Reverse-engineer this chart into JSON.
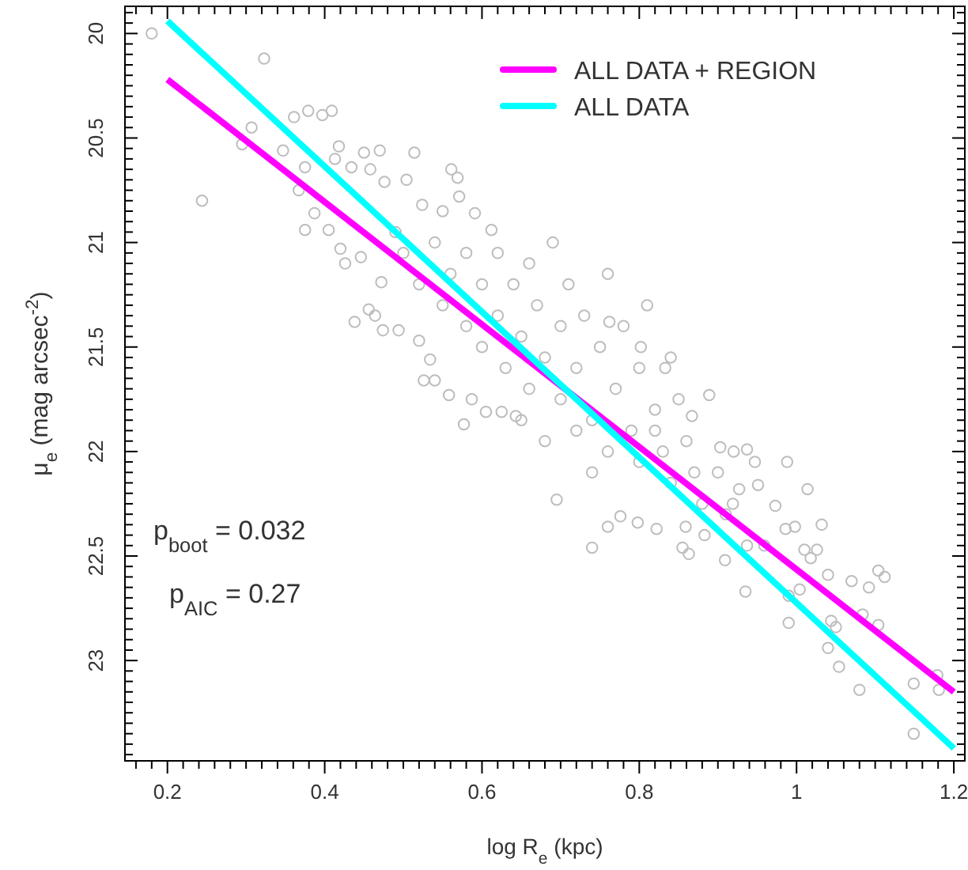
{
  "chart_data": {
    "type": "scatter",
    "xlabel": "log R$_{e}$ (kpc)",
    "ylabel": "μ$_{e}$ (mag arcsec$^{-2}$)",
    "xlim": [
      0.146,
      1.214
    ],
    "ylim": [
      23.48,
      19.87
    ],
    "xticks": [
      {
        "value": 0.16,
        "label": null
      },
      {
        "value": 0.18,
        "label": null
      },
      0.2,
      {
        "value": 0.22,
        "label": null
      },
      {
        "value": 0.24,
        "label": null
      },
      {
        "value": 0.26,
        "label": null
      },
      {
        "value": 0.28,
        "label": null
      },
      {
        "value": 0.3,
        "label": null
      },
      {
        "value": 0.32,
        "label": null
      },
      {
        "value": 0.34,
        "label": null
      },
      {
        "value": 0.36,
        "label": null
      },
      {
        "value": 0.38,
        "label": null
      },
      0.4,
      {
        "value": 0.42,
        "label": null
      },
      {
        "value": 0.44,
        "label": null
      },
      {
        "value": 0.46,
        "label": null
      },
      {
        "value": 0.48,
        "label": null
      },
      {
        "value": 0.5,
        "label": null
      },
      {
        "value": 0.52,
        "label": null
      },
      {
        "value": 0.54,
        "label": null
      },
      {
        "value": 0.56,
        "label": null
      },
      {
        "value": 0.58,
        "label": null
      },
      0.6,
      {
        "value": 0.62,
        "label": null
      },
      {
        "value": 0.64,
        "label": null
      },
      {
        "value": 0.66,
        "label": null
      },
      {
        "value": 0.68,
        "label": null
      },
      {
        "value": 0.7,
        "label": null
      },
      {
        "value": 0.72,
        "label": null
      },
      {
        "value": 0.74,
        "label": null
      },
      {
        "value": 0.76,
        "label": null
      },
      {
        "value": 0.78,
        "label": null
      },
      0.8,
      {
        "value": 0.82,
        "label": null
      },
      {
        "value": 0.84,
        "label": null
      },
      {
        "value": 0.86,
        "label": null
      },
      {
        "value": 0.88,
        "label": null
      },
      {
        "value": 0.9,
        "label": null
      },
      {
        "value": 0.92,
        "label": null
      },
      {
        "value": 0.94,
        "label": null
      },
      {
        "value": 0.96,
        "label": null
      },
      {
        "value": 0.98,
        "label": null
      },
      1,
      {
        "value": 1.02,
        "label": null
      },
      {
        "value": 1.04,
        "label": null
      },
      {
        "value": 1.06,
        "label": null
      },
      {
        "value": 1.08,
        "label": null
      },
      {
        "value": 1.1,
        "label": null
      },
      {
        "value": 1.12,
        "label": null
      },
      {
        "value": 1.14,
        "label": null
      },
      {
        "value": 1.16,
        "label": null
      },
      {
        "value": 1.18,
        "label": null
      },
      1.2
    ],
    "yticks": [
      {
        "value": 19.9,
        "label": null
      },
      {
        "value": 19.95,
        "label": null
      },
      20,
      {
        "value": 20.05,
        "label": null
      },
      {
        "value": 20.1,
        "label": null
      },
      {
        "value": 20.15,
        "label": null
      },
      {
        "value": 20.2,
        "label": null
      },
      {
        "value": 20.25,
        "label": null
      },
      {
        "value": 20.3,
        "label": null
      },
      {
        "value": 20.35,
        "label": null
      },
      {
        "value": 20.4,
        "label": null
      },
      {
        "value": 20.45,
        "label": null
      },
      20.5,
      {
        "value": 20.55,
        "label": null
      },
      {
        "value": 20.6,
        "label": null
      },
      {
        "value": 20.65,
        "label": null
      },
      {
        "value": 20.7,
        "label": null
      },
      {
        "value": 20.75,
        "label": null
      },
      {
        "value": 20.8,
        "label": null
      },
      {
        "value": 20.85,
        "label": null
      },
      {
        "value": 20.9,
        "label": null
      },
      {
        "value": 20.95,
        "label": null
      },
      21,
      {
        "value": 21.05,
        "label": null
      },
      {
        "value": 21.1,
        "label": null
      },
      {
        "value": 21.15,
        "label": null
      },
      {
        "value": 21.2,
        "label": null
      },
      {
        "value": 21.25,
        "label": null
      },
      {
        "value": 21.3,
        "label": null
      },
      {
        "value": 21.35,
        "label": null
      },
      {
        "value": 21.4,
        "label": null
      },
      {
        "value": 21.45,
        "label": null
      },
      21.5,
      {
        "value": 21.55,
        "label": null
      },
      {
        "value": 21.6,
        "label": null
      },
      {
        "value": 21.65,
        "label": null
      },
      {
        "value": 21.7,
        "label": null
      },
      {
        "value": 21.75,
        "label": null
      },
      {
        "value": 21.8,
        "label": null
      },
      {
        "value": 21.85,
        "label": null
      },
      {
        "value": 21.9,
        "label": null
      },
      {
        "value": 21.95,
        "label": null
      },
      22,
      {
        "value": 22.05,
        "label": null
      },
      {
        "value": 22.1,
        "label": null
      },
      {
        "value": 22.15,
        "label": null
      },
      {
        "value": 22.2,
        "label": null
      },
      {
        "value": 22.25,
        "label": null
      },
      {
        "value": 22.3,
        "label": null
      },
      {
        "value": 22.35,
        "label": null
      },
      {
        "value": 22.4,
        "label": null
      },
      {
        "value": 22.45,
        "label": null
      },
      22.5,
      {
        "value": 22.55,
        "label": null
      },
      {
        "value": 22.6,
        "label": null
      },
      {
        "value": 22.65,
        "label": null
      },
      {
        "value": 22.7,
        "label": null
      },
      {
        "value": 22.75,
        "label": null
      },
      {
        "value": 22.8,
        "label": null
      },
      {
        "value": 22.85,
        "label": null
      },
      {
        "value": 22.9,
        "label": null
      },
      {
        "value": 22.95,
        "label": null
      },
      23,
      {
        "value": 23.05,
        "label": null
      },
      {
        "value": 23.1,
        "label": null
      },
      {
        "value": 23.15,
        "label": null
      },
      {
        "value": 23.2,
        "label": null
      },
      {
        "value": 23.25,
        "label": null
      },
      {
        "value": 23.3,
        "label": null
      },
      {
        "value": 23.35,
        "label": null
      },
      {
        "value": 23.4,
        "label": null
      },
      {
        "value": 23.45,
        "label": null
      }
    ],
    "grid": false,
    "legend": "top right",
    "annotations": [
      "p$_{boot}$ = 0.032",
      "p$_{AIC}$ = 0.27"
    ],
    "series": [
      {
        "marker": "circle",
        "color": "#bdbdbd",
        "x": [
          0.18,
          0.323,
          0.244,
          0.307,
          0.295,
          0.361,
          0.379,
          0.397,
          0.409,
          0.347,
          0.375,
          0.367,
          0.387,
          0.375,
          0.418,
          0.413,
          0.434,
          0.45,
          0.47,
          0.514,
          0.458,
          0.476,
          0.504,
          0.561,
          0.569,
          0.571,
          0.42,
          0.426,
          0.405,
          0.438,
          0.456,
          0.474,
          0.494,
          0.52,
          0.464,
          0.472,
          0.446,
          0.49,
          0.524,
          0.55,
          0.591,
          0.612,
          0.534,
          0.526,
          0.54,
          0.558,
          0.577,
          0.587,
          0.605,
          0.625,
          0.643,
          0.5,
          0.52,
          0.54,
          0.55,
          0.56,
          0.58,
          0.58,
          0.6,
          0.6,
          0.62,
          0.62,
          0.63,
          0.64,
          0.65,
          0.66,
          0.66,
          0.67,
          0.68,
          0.69,
          0.7,
          0.7,
          0.71,
          0.72,
          0.73,
          0.74,
          0.75,
          0.76,
          0.77,
          0.78,
          0.79,
          0.8,
          0.81,
          0.82,
          0.83,
          0.84,
          0.85,
          0.889,
          0.867,
          0.903,
          0.937,
          0.947,
          0.988,
          1.014,
          0.951,
          0.973,
          0.927,
          0.919,
          1.032,
          0.998,
          0.986,
          1.01,
          1.026,
          1.018,
          0.959,
          0.937,
          0.909,
          0.883,
          0.859,
          0.855,
          0.863,
          0.822,
          0.798,
          0.776,
          0.76,
          0.74,
          0.695,
          1.04,
          1.07,
          1.104,
          1.112,
          1.092,
          1.004,
          0.99,
          0.935,
          1.084,
          1.104,
          1.044,
          1.05,
          0.99,
          1.04,
          1.054,
          1.08,
          1.149,
          1.179,
          1.181,
          1.149,
          0.8,
          0.82,
          0.84,
          0.86,
          0.87,
          0.88,
          0.9,
          0.91,
          0.92,
          0.74,
          0.76,
          0.72,
          0.68,
          0.65,
          0.833,
          0.802,
          0.762
        ],
        "values": [
          20.0,
          20.12,
          20.8,
          20.45,
          20.53,
          20.4,
          20.37,
          20.39,
          20.37,
          20.56,
          20.64,
          20.75,
          20.86,
          20.94,
          20.54,
          20.6,
          20.64,
          20.57,
          20.56,
          20.57,
          20.65,
          20.71,
          20.7,
          20.65,
          20.69,
          20.78,
          21.03,
          21.1,
          20.94,
          21.38,
          21.32,
          21.42,
          21.42,
          21.47,
          21.35,
          21.19,
          21.07,
          20.95,
          20.82,
          20.85,
          20.86,
          20.94,
          21.56,
          21.66,
          21.66,
          21.73,
          21.87,
          21.75,
          21.81,
          21.81,
          21.83,
          21.05,
          21.2,
          21.0,
          21.3,
          21.15,
          21.05,
          21.4,
          21.2,
          21.5,
          21.05,
          21.35,
          21.6,
          21.2,
          21.45,
          21.1,
          21.7,
          21.3,
          21.55,
          21.0,
          21.4,
          21.75,
          21.2,
          21.6,
          21.35,
          21.85,
          21.5,
          21.15,
          21.7,
          21.4,
          21.9,
          21.6,
          21.3,
          21.8,
          22.0,
          21.55,
          21.75,
          21.73,
          21.83,
          21.98,
          21.99,
          22.05,
          22.05,
          22.18,
          22.16,
          22.26,
          22.18,
          22.25,
          22.35,
          22.36,
          22.37,
          22.47,
          22.47,
          22.51,
          22.45,
          22.45,
          22.52,
          22.4,
          22.36,
          22.46,
          22.49,
          22.37,
          22.34,
          22.31,
          22.36,
          22.46,
          22.23,
          22.59,
          22.62,
          22.57,
          22.6,
          22.65,
          22.66,
          22.69,
          22.67,
          22.78,
          22.83,
          22.81,
          22.84,
          22.82,
          22.94,
          23.03,
          23.14,
          23.11,
          23.07,
          23.14,
          23.35,
          22.05,
          21.9,
          22.15,
          21.95,
          22.1,
          22.25,
          22.1,
          22.3,
          22.0,
          22.1,
          22.0,
          21.9,
          21.95,
          21.85,
          21.6,
          21.5,
          21.38
        ]
      },
      {
        "type": "line",
        "name": "ALL DATA + REGION",
        "color": "#ff00ff",
        "x": [
          0.2,
          1.2
        ],
        "values": [
          20.22,
          23.15
        ]
      },
      {
        "type": "line",
        "name": "ALL DATA",
        "color": "#00ffff",
        "x": [
          0.2,
          1.2
        ],
        "values": [
          19.94,
          23.42
        ]
      }
    ]
  }
}
